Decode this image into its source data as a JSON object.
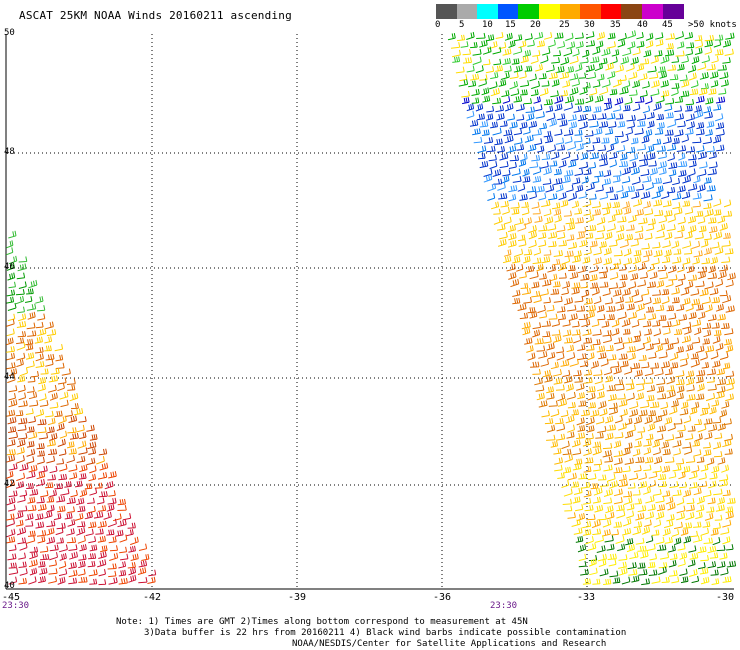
{
  "title": "ASCAT 25KM NOAA Winds 20160211 ascending",
  "legend": {
    "labels": [
      "0",
      "5",
      "10",
      "15",
      "20",
      "25",
      "30",
      "35",
      "40",
      "45",
      ">50 knots"
    ],
    "colors": [
      "#555555",
      "#aaaaaa",
      "#00ffff",
      "#0055ff",
      "#00cc00",
      "#ffff00",
      "#ffaa00",
      "#ff5500",
      "#ff0000",
      "#8b4513",
      "#cc00cc",
      "#660099"
    ]
  },
  "map": {
    "lat_labels": [
      "50",
      "48",
      "46",
      "44",
      "42",
      "40"
    ],
    "lon_labels": [
      "-45",
      "-42",
      "-39",
      "-36",
      "-33",
      "-30"
    ],
    "pass_times": [
      "23:30",
      "23:30"
    ]
  },
  "notes": {
    "line1": "Note: 1) Times are GMT 2)Times along bottom correspond to measurement at 45N",
    "line2": "3)Data buffer is 22 hrs from 20160211 4) Black wind barbs indicate possible contamination",
    "line3": "NOAA/NESDIS/Center for Satellite Applications and Research"
  }
}
